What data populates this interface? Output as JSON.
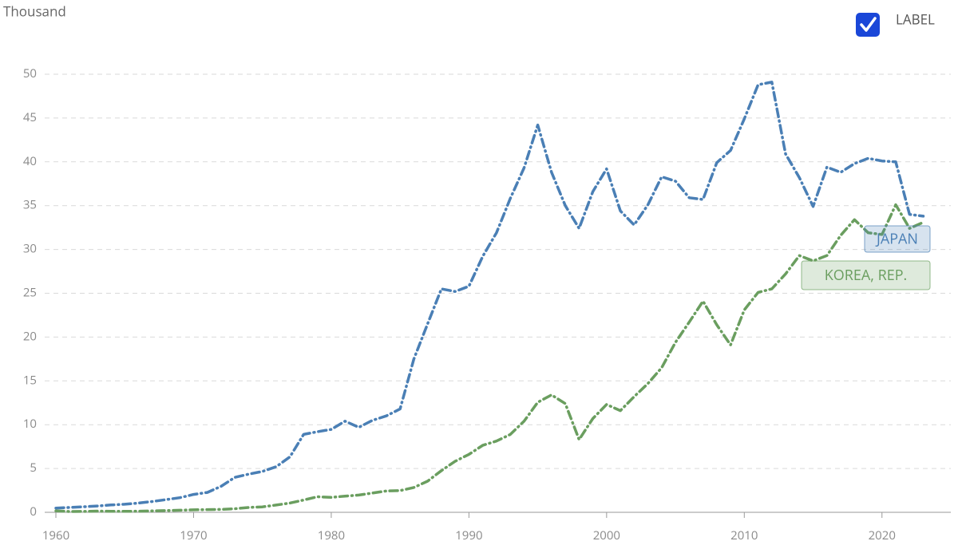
{
  "chart_data": {
    "type": "line",
    "y_label": "Thousand",
    "x": [
      1960,
      1961,
      1962,
      1963,
      1964,
      1965,
      1966,
      1967,
      1968,
      1969,
      1970,
      1971,
      1972,
      1973,
      1974,
      1975,
      1976,
      1977,
      1978,
      1979,
      1980,
      1981,
      1982,
      1983,
      1984,
      1985,
      1986,
      1987,
      1988,
      1989,
      1990,
      1991,
      1992,
      1993,
      1994,
      1995,
      1996,
      1997,
      1998,
      1999,
      2000,
      2001,
      2002,
      2003,
      2004,
      2005,
      2006,
      2007,
      2008,
      2009,
      2010,
      2011,
      2012,
      2013,
      2014,
      2015,
      2016,
      2017,
      2018,
      2019,
      2020,
      2021,
      2022,
      2023
    ],
    "series": [
      {
        "name": "JAPAN",
        "color": "#4a7fb5",
        "values": [
          0.48,
          0.56,
          0.63,
          0.72,
          0.84,
          0.92,
          1.06,
          1.23,
          1.45,
          1.67,
          2.04,
          2.27,
          2.97,
          3.99,
          4.35,
          4.66,
          5.2,
          6.33,
          8.9,
          9.2,
          9.46,
          10.4,
          9.7,
          10.5,
          11.0,
          11.8,
          17.5,
          21.5,
          25.5,
          25.2,
          25.8,
          29.2,
          31.9,
          35.8,
          39.3,
          44.2,
          38.8,
          35.0,
          32.4,
          36.6,
          39.2,
          34.4,
          32.8,
          35.1,
          38.3,
          37.8,
          35.9,
          35.7,
          39.9,
          41.3,
          44.9,
          48.8,
          49.1,
          40.9,
          38.2,
          34.9,
          39.4,
          38.8,
          39.8,
          40.4,
          40.1,
          40.0,
          34.0,
          33.8
        ]
      },
      {
        "name": "KOREA, REP.",
        "color": "#6a9e5f",
        "values": [
          0.16,
          0.09,
          0.1,
          0.14,
          0.12,
          0.11,
          0.13,
          0.16,
          0.2,
          0.24,
          0.28,
          0.31,
          0.33,
          0.41,
          0.56,
          0.62,
          0.83,
          1.06,
          1.4,
          1.78,
          1.7,
          1.85,
          1.97,
          2.2,
          2.43,
          2.48,
          2.83,
          3.55,
          4.75,
          5.82,
          6.61,
          7.64,
          8.13,
          8.88,
          10.39,
          12.56,
          13.4,
          12.4,
          8.3,
          10.7,
          12.3,
          11.6,
          13.2,
          14.7,
          16.5,
          19.4,
          21.7,
          24.1,
          21.4,
          19.1,
          23.1,
          25.1,
          25.5,
          27.2,
          29.3,
          28.7,
          29.3,
          31.6,
          33.4,
          31.9,
          31.7,
          35.1,
          32.4,
          33.1
        ]
      }
    ],
    "xlim": [
      1960,
      2025
    ],
    "xticks": [
      1960,
      1970,
      1980,
      1990,
      2000,
      2010,
      2020
    ],
    "ylim": [
      0,
      50
    ],
    "yticks": [
      0,
      5,
      10,
      15,
      20,
      25,
      30,
      35,
      40,
      45,
      50
    ],
    "grid": true
  },
  "label_toggle": {
    "label": "LABEL",
    "checked": true
  }
}
